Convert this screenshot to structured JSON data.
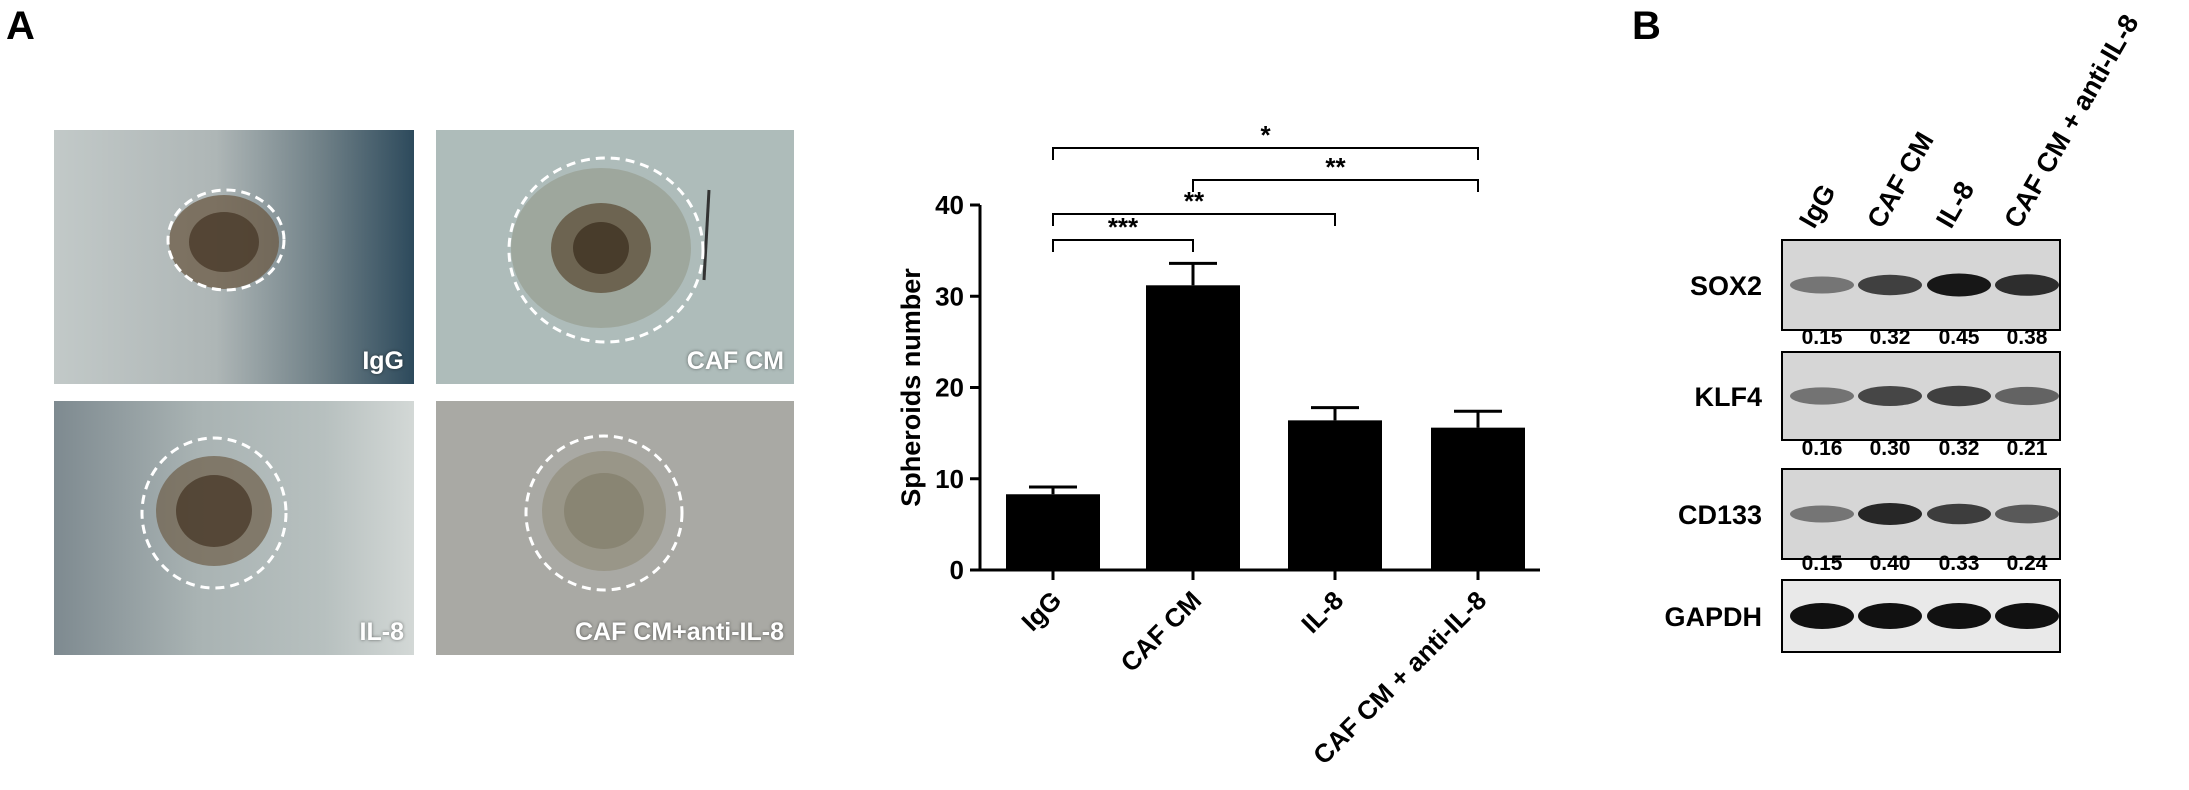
{
  "figure": {
    "panel_a_letter": "A",
    "panel_b_letter": "B"
  },
  "micrographs": [
    {
      "label": "IgG"
    },
    {
      "label": "CAF CM"
    },
    {
      "label": "IL-8"
    },
    {
      "label": "CAF CM+anti-IL-8"
    }
  ],
  "chart_data": {
    "type": "bar",
    "categories": [
      "IgG",
      "CAF CM",
      "IL-8",
      "CAF CM + anti-IL-8"
    ],
    "values": [
      8.3,
      31.2,
      16.4,
      15.6
    ],
    "errors": [
      0.8,
      2.4,
      1.4,
      1.8
    ],
    "ylabel": "Spheroids number",
    "ylim": [
      0,
      40
    ],
    "yticks": [
      0,
      10,
      20,
      30,
      40
    ],
    "grid": false,
    "colors": {
      "bar": "#000000"
    },
    "significance": [
      {
        "from": "IgG",
        "to": "CAF CM",
        "label": "***"
      },
      {
        "from": "IgG",
        "to": "IL-8",
        "label": "**"
      },
      {
        "from": "CAF CM",
        "to": "CAF CM + anti-IL-8",
        "label": "**"
      },
      {
        "from": "IgG",
        "to": "CAF CM + anti-IL-8",
        "label": "*"
      }
    ]
  },
  "western_blot": {
    "lanes": [
      "IgG",
      "CAF CM",
      "IL-8",
      "CAF CM + anti-IL-8"
    ],
    "proteins": [
      {
        "name": "SOX2",
        "quant": [
          "0.15",
          "0.32",
          "0.45",
          "0.38"
        ],
        "intensity": [
          0.15,
          0.32,
          0.45,
          0.38
        ]
      },
      {
        "name": "KLF4",
        "quant": [
          "0.16",
          "0.30",
          "0.32",
          "0.21"
        ],
        "intensity": [
          0.16,
          0.3,
          0.32,
          0.21
        ]
      },
      {
        "name": "CD133",
        "quant": [
          "0.15",
          "0.40",
          "0.33",
          "0.24"
        ],
        "intensity": [
          0.15,
          0.4,
          0.33,
          0.24
        ]
      },
      {
        "name": "GAPDH",
        "quant": [],
        "intensity": [
          0.9,
          0.9,
          0.9,
          0.9
        ]
      }
    ]
  }
}
